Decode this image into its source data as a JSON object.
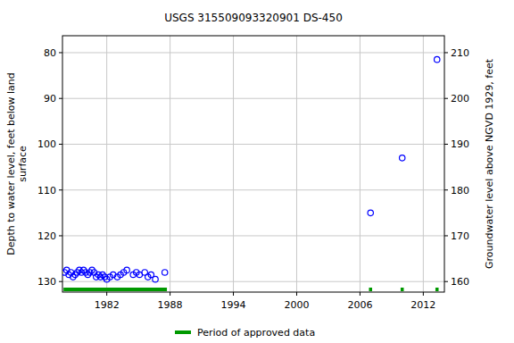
{
  "chart_data": {
    "type": "scatter",
    "title": "USGS 315509093320901 DS-450",
    "y_label": [
      "Depth to water level, feet below land",
      "surface"
    ],
    "y2_label": "Groundwater level above NGVD 1929, feet",
    "x": [
      1978.0,
      1978.2,
      1978.4,
      1978.6,
      1978.8,
      1979.0,
      1979.2,
      1979.4,
      1979.6,
      1979.8,
      1980.0,
      1980.2,
      1980.4,
      1980.6,
      1980.8,
      1981.0,
      1981.2,
      1981.4,
      1981.6,
      1981.8,
      1982.0,
      1982.3,
      1982.6,
      1983.0,
      1983.3,
      1983.6,
      1983.9,
      1984.5,
      1984.8,
      1985.1,
      1985.6,
      1985.9,
      1986.2,
      1986.6,
      1987.5,
      2007.0,
      2010.0,
      2013.3
    ],
    "series": [
      {
        "name": "Depth to water level",
        "color": "#0000ff",
        "marker": "open-circle",
        "values": [
          128,
          127.5,
          128.5,
          128,
          129,
          128.5,
          128,
          127.5,
          128,
          127.5,
          128,
          128.5,
          128,
          127.5,
          128,
          129,
          128.5,
          129,
          128.5,
          129,
          129.5,
          129,
          128.5,
          129,
          128.5,
          128,
          127.5,
          128.5,
          128,
          128.5,
          128,
          129,
          128.5,
          129.5,
          128,
          115,
          103,
          81.5
        ]
      }
    ],
    "approved_periods": {
      "name": "Period of approved data",
      "color": "#009900",
      "start": [
        1977.9,
        2006.85,
        2009.85,
        2013.15
      ],
      "end": [
        1987.7,
        2007.15,
        2010.15,
        2013.45
      ]
    },
    "xlim": [
      1977.8,
      2014.0
    ],
    "xticks": [
      1982,
      1988,
      1994,
      2000,
      2006,
      2012
    ],
    "ylim": [
      76.3,
      132.3
    ],
    "yticks": [
      80,
      90,
      100,
      110,
      120,
      130
    ],
    "y2lim": [
      213.7,
      157.7
    ],
    "y2ticks": [
      160,
      170,
      180,
      190,
      200,
      210
    ],
    "grid": true,
    "legend": "bottom"
  }
}
